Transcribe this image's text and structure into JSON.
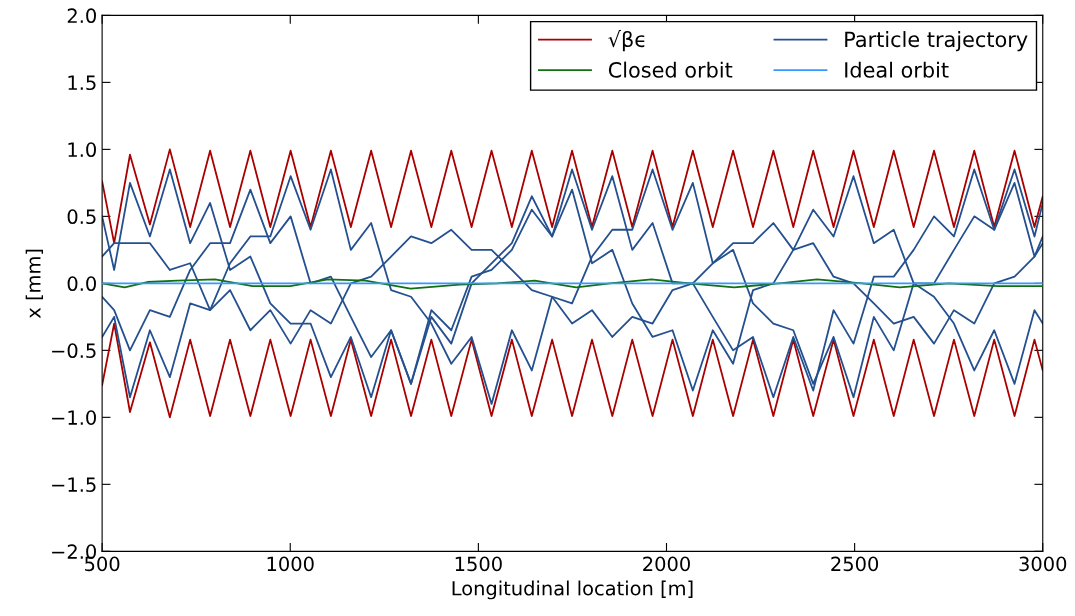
{
  "chart_data": {
    "type": "line",
    "xlabel": "Longitudinal location [m]",
    "ylabel": "x [mm]",
    "x": [
      500,
      532,
      574,
      627,
      680,
      734,
      787,
      840,
      894,
      947,
      1001,
      1054,
      1108,
      1161,
      1215,
      1268,
      1321,
      1375,
      1428,
      1482,
      1535,
      1589,
      1642,
      1696,
      1749,
      1802,
      1856,
      1909,
      1963,
      2016,
      2070,
      2123,
      2177,
      2230,
      2284,
      2337,
      2390,
      2444,
      2497,
      2551,
      2604,
      2657,
      2711,
      2764,
      2818,
      2871,
      2925,
      2978,
      3000
    ],
    "series": [
      {
        "name": "√βϵ",
        "color": "#aa0000",
        "values": [
          0.76,
          0.3,
          0.96,
          0.44,
          1.0,
          0.42,
          0.99,
          0.42,
          0.99,
          0.42,
          0.99,
          0.42,
          0.99,
          0.42,
          0.99,
          0.42,
          0.99,
          0.42,
          0.99,
          0.42,
          0.99,
          0.42,
          0.99,
          0.42,
          0.99,
          0.42,
          0.99,
          0.42,
          0.99,
          0.42,
          0.99,
          0.42,
          0.99,
          0.42,
          0.99,
          0.42,
          0.99,
          0.42,
          0.99,
          0.42,
          0.99,
          0.42,
          0.99,
          0.42,
          0.99,
          0.42,
          0.99,
          0.42,
          0.65
        ]
      },
      {
        "color": "#aa0000",
        "values": [
          -0.76,
          -0.3,
          -0.96,
          -0.44,
          -1.0,
          -0.42,
          -0.99,
          -0.42,
          -0.99,
          -0.42,
          -0.99,
          -0.42,
          -0.99,
          -0.42,
          -0.99,
          -0.42,
          -0.99,
          -0.42,
          -0.99,
          -0.42,
          -0.99,
          -0.42,
          -0.99,
          -0.42,
          -0.99,
          -0.42,
          -0.99,
          -0.42,
          -0.99,
          -0.42,
          -0.99,
          -0.42,
          -0.99,
          -0.42,
          -0.99,
          -0.42,
          -0.99,
          -0.42,
          -0.99,
          -0.42,
          -0.99,
          -0.42,
          -0.99,
          -0.42,
          -0.99,
          -0.42,
          -0.99,
          -0.42,
          -0.65
        ]
      },
      {
        "name": "Particle trajectory",
        "color": "#24508f",
        "values": [
          0.5,
          0.1,
          0.75,
          0.35,
          0.85,
          0.3,
          0.6,
          0.1,
          0.2,
          -0.15,
          -0.3,
          -0.3,
          -0.7,
          -0.4,
          -0.85,
          -0.35,
          -0.75,
          -0.2,
          -0.35,
          0.05,
          0.1,
          0.25,
          0.55,
          0.35,
          0.85,
          0.4,
          0.8,
          0.25,
          0.45,
          0.0,
          0.0,
          -0.25,
          -0.5,
          -0.4,
          -0.85,
          -0.4,
          -0.8,
          -0.2,
          -0.45,
          0.05,
          0.05,
          0.25,
          0.5,
          0.35,
          0.85,
          0.4,
          0.75,
          0.2,
          0.35
        ]
      },
      {
        "color": "#24508f",
        "values": [
          -0.4,
          -0.25,
          -0.85,
          -0.35,
          -0.7,
          -0.15,
          -0.2,
          0.15,
          0.35,
          0.35,
          0.8,
          0.4,
          0.85,
          0.25,
          0.45,
          -0.05,
          -0.1,
          -0.3,
          -0.6,
          -0.4,
          -0.9,
          -0.35,
          -0.65,
          -0.1,
          -0.15,
          0.2,
          0.4,
          0.4,
          0.85,
          0.4,
          0.75,
          0.15,
          0.25,
          -0.15,
          -0.3,
          -0.35,
          -0.75,
          -0.4,
          -0.85,
          -0.25,
          -0.5,
          0.0,
          0.0,
          0.25,
          0.5,
          0.4,
          0.85,
          0.35,
          0.6
        ]
      },
      {
        "color": "#24508f",
        "values": [
          0.2,
          0.3,
          0.3,
          0.3,
          0.1,
          0.15,
          -0.2,
          -0.05,
          -0.35,
          -0.2,
          -0.45,
          -0.2,
          -0.3,
          0.0,
          0.05,
          0.2,
          0.35,
          0.3,
          0.4,
          0.25,
          0.25,
          0.1,
          -0.05,
          -0.1,
          -0.3,
          -0.2,
          -0.4,
          -0.25,
          -0.3,
          -0.05,
          0.0,
          0.15,
          0.3,
          0.3,
          0.45,
          0.25,
          0.3,
          0.05,
          0.0,
          -0.15,
          -0.3,
          -0.25,
          -0.45,
          -0.2,
          -0.3,
          0.0,
          0.05,
          0.2,
          0.3
        ]
      },
      {
        "color": "#24508f",
        "values": [
          -0.1,
          -0.2,
          -0.5,
          -0.2,
          -0.25,
          0.1,
          0.3,
          0.3,
          0.7,
          0.3,
          0.5,
          0.0,
          0.05,
          -0.25,
          -0.55,
          -0.35,
          -0.75,
          -0.25,
          -0.45,
          0.0,
          0.15,
          0.3,
          0.65,
          0.35,
          0.7,
          0.15,
          0.25,
          -0.15,
          -0.4,
          -0.35,
          -0.8,
          -0.35,
          -0.6,
          -0.05,
          0.0,
          0.25,
          0.55,
          0.35,
          0.8,
          0.3,
          0.4,
          0.0,
          -0.1,
          -0.3,
          -0.65,
          -0.35,
          -0.75,
          -0.2,
          -0.3
        ]
      },
      {
        "name": "Closed orbit",
        "color": "#127012",
        "x": [
          500,
          560,
          620,
          700,
          800,
          900,
          1000,
          1100,
          1200,
          1320,
          1450,
          1550,
          1650,
          1760,
          1850,
          1960,
          2060,
          2180,
          2300,
          2400,
          2520,
          2620,
          2750,
          2880,
          3000
        ],
        "values": [
          0.0,
          -0.03,
          0.01,
          0.02,
          0.03,
          -0.02,
          -0.02,
          0.03,
          0.02,
          -0.04,
          -0.01,
          0.0,
          0.02,
          -0.03,
          0.0,
          0.03,
          0.0,
          -0.03,
          0.0,
          0.03,
          0.0,
          -0.03,
          0.0,
          -0.02,
          -0.02
        ]
      },
      {
        "name": "Ideal orbit",
        "color": "#3399ff",
        "x": [
          500,
          3000
        ],
        "values": [
          0.0,
          0.0
        ]
      }
    ],
    "xlim": [
      500,
      3000
    ],
    "xticks": [
      500,
      1000,
      1500,
      2000,
      2500,
      3000
    ],
    "ylim": [
      -2.0,
      2.0
    ],
    "yticks": [
      {
        "value": -2.0,
        "label": "−2.0"
      },
      {
        "value": -1.5,
        "label": "−1.5"
      },
      {
        "value": -1.0,
        "label": "−1.0"
      },
      {
        "value": -0.5,
        "label": "−0.5"
      },
      {
        "value": 0.0,
        "label": "0.0"
      },
      {
        "value": 0.5,
        "label": "0.5"
      },
      {
        "value": 1.0,
        "label": "1.0"
      },
      {
        "value": 1.5,
        "label": "1.5"
      },
      {
        "value": 2.0,
        "label": "2.0"
      }
    ],
    "legend": "top right",
    "grid": false
  }
}
